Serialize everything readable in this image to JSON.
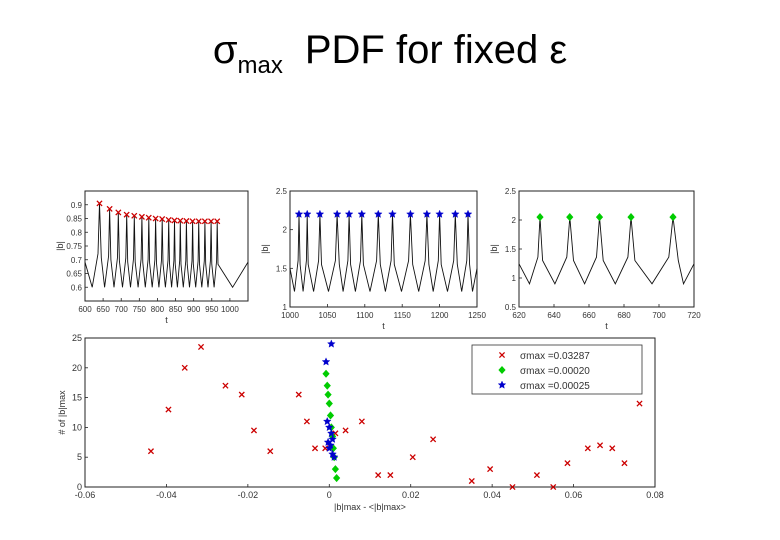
{
  "title": {
    "symbol": "σ",
    "subscript": "max",
    "text": "PDF for fixed ε"
  },
  "chart_data": [
    {
      "type": "line",
      "xlabel": "t",
      "ylabel": "|b|",
      "xlim": [
        600,
        1050
      ],
      "ylim": [
        0.55,
        0.95
      ],
      "xticks": [
        600,
        650,
        700,
        750,
        800,
        850,
        900,
        950,
        1000
      ],
      "xtick_labels": [
        "600",
        "650",
        "700",
        "750",
        "800",
        "850",
        "900",
        "950",
        "1000"
      ],
      "yticks": [
        0.6,
        0.65,
        0.7,
        0.75,
        0.8,
        0.85,
        0.9
      ],
      "ytick_labels": [
        "0.6",
        "0.65",
        "0.7",
        "0.75",
        "0.8",
        "0.85",
        "0.9"
      ],
      "marker": "x",
      "marker_color": "#cc0000",
      "peaks": [
        {
          "x": 640,
          "y": 0.905
        },
        {
          "x": 668,
          "y": 0.885
        },
        {
          "x": 692,
          "y": 0.872
        },
        {
          "x": 715,
          "y": 0.864
        },
        {
          "x": 736,
          "y": 0.86
        },
        {
          "x": 757,
          "y": 0.856
        },
        {
          "x": 776,
          "y": 0.853
        },
        {
          "x": 795,
          "y": 0.85
        },
        {
          "x": 813,
          "y": 0.848
        },
        {
          "x": 831,
          "y": 0.845
        },
        {
          "x": 847,
          "y": 0.843
        },
        {
          "x": 863,
          "y": 0.842
        },
        {
          "x": 880,
          "y": 0.841
        },
        {
          "x": 897,
          "y": 0.84
        },
        {
          "x": 914,
          "y": 0.84
        },
        {
          "x": 931,
          "y": 0.84
        },
        {
          "x": 948,
          "y": 0.84
        },
        {
          "x": 965,
          "y": 0.84
        }
      ],
      "trough_level": 0.6
    },
    {
      "type": "line",
      "xlabel": "t",
      "ylabel": "|b|",
      "xlim": [
        1000,
        1250
      ],
      "ylim": [
        1,
        2.5
      ],
      "xticks": [
        1000,
        1050,
        1100,
        1150,
        1200,
        1250
      ],
      "xtick_labels": [
        "1000",
        "1050",
        "1100",
        "1150",
        "1200",
        "1250"
      ],
      "yticks": [
        1,
        1.5,
        2,
        2.5
      ],
      "ytick_labels": [
        "1",
        "1.5",
        "2",
        "2.5"
      ],
      "marker": "*",
      "marker_color": "#0000cc",
      "peaks": [
        {
          "x": 1012,
          "y": 2.2
        },
        {
          "x": 1023,
          "y": 2.2
        },
        {
          "x": 1040,
          "y": 2.2
        },
        {
          "x": 1063,
          "y": 2.2
        },
        {
          "x": 1079,
          "y": 2.2
        },
        {
          "x": 1096,
          "y": 2.2
        },
        {
          "x": 1118,
          "y": 2.2
        },
        {
          "x": 1137,
          "y": 2.2
        },
        {
          "x": 1161,
          "y": 2.2
        },
        {
          "x": 1183,
          "y": 2.2
        },
        {
          "x": 1200,
          "y": 2.2
        },
        {
          "x": 1221,
          "y": 2.2
        },
        {
          "x": 1238,
          "y": 2.2
        }
      ],
      "trough_level": 1.2
    },
    {
      "type": "line",
      "xlabel": "t",
      "ylabel": "|b|",
      "xlim": [
        620,
        720
      ],
      "ylim": [
        0.5,
        2.5
      ],
      "xticks": [
        620,
        640,
        660,
        680,
        700,
        720
      ],
      "xtick_labels": [
        "620",
        "640",
        "660",
        "680",
        "700",
        "720"
      ],
      "yticks": [
        0.5,
        1,
        1.5,
        2,
        2.5
      ],
      "ytick_labels": [
        "0.5",
        "1",
        "1.5",
        "2",
        "2.5"
      ],
      "marker": "diamond",
      "marker_color": "#00cc00",
      "peaks": [
        {
          "x": 632,
          "y": 2.05
        },
        {
          "x": 649,
          "y": 2.05
        },
        {
          "x": 666,
          "y": 2.05
        },
        {
          "x": 684,
          "y": 2.05
        },
        {
          "x": 708,
          "y": 2.05
        }
      ],
      "trough_level": 0.9
    },
    {
      "type": "scatter",
      "xlabel": "|b|max - <|b|max>",
      "ylabel": "# of |b|max",
      "xlim": [
        -0.06,
        0.08
      ],
      "ylim": [
        0,
        25
      ],
      "xticks": [
        -0.06,
        -0.04,
        -0.02,
        0,
        0.02,
        0.04,
        0.06,
        0.08
      ],
      "xtick_labels": [
        "-0.06",
        "-0.04",
        "-0.02",
        "0",
        "0.02",
        "0.04",
        "0.06",
        "0.08"
      ],
      "yticks": [
        0,
        5,
        10,
        15,
        20,
        25
      ],
      "ytick_labels": [
        "0",
        "5",
        "10",
        "15",
        "20",
        "25"
      ],
      "legend_position": "top-right",
      "series": [
        {
          "name": "σmax =0.03287",
          "marker": "x",
          "color": "#cc0000",
          "points": [
            [
              -0.0438,
              6
            ],
            [
              -0.0395,
              13
            ],
            [
              -0.0355,
              20
            ],
            [
              -0.0315,
              23.5
            ],
            [
              -0.0255,
              17
            ],
            [
              -0.0215,
              15.5
            ],
            [
              -0.0185,
              9.5
            ],
            [
              -0.0145,
              6
            ],
            [
              -0.0075,
              15.5
            ],
            [
              -0.0055,
              11
            ],
            [
              -0.0035,
              6.5
            ],
            [
              -0.001,
              6.5
            ],
            [
              0.0015,
              9
            ],
            [
              0.004,
              9.5
            ],
            [
              0.008,
              11
            ],
            [
              0.012,
              2
            ],
            [
              0.015,
              2
            ],
            [
              0.0205,
              5
            ],
            [
              0.0255,
              8
            ],
            [
              0.035,
              1
            ],
            [
              0.0395,
              3
            ],
            [
              0.045,
              0
            ],
            [
              0.051,
              2
            ],
            [
              0.055,
              0
            ],
            [
              0.0585,
              4
            ],
            [
              0.0635,
              6.5
            ],
            [
              0.0665,
              7
            ],
            [
              0.0695,
              6.5
            ],
            [
              0.0725,
              4
            ],
            [
              0.0762,
              14
            ]
          ]
        },
        {
          "name": "σmax =0.00020",
          "marker": "diamond",
          "color": "#00cc00",
          "points": [
            [
              -0.0008,
              19
            ],
            [
              -0.0005,
              17
            ],
            [
              -0.0003,
              15.5
            ],
            [
              0,
              14
            ],
            [
              0.0003,
              12
            ],
            [
              0.0005,
              10
            ],
            [
              0.0008,
              8.5
            ],
            [
              0.001,
              6.5
            ],
            [
              0.0012,
              5
            ],
            [
              0.0015,
              3
            ],
            [
              0.0018,
              1.5
            ]
          ]
        },
        {
          "name": "σmax =0.00025",
          "marker": "*",
          "color": "#0000cc",
          "points": [
            [
              -0.0008,
              21
            ],
            [
              0.0005,
              24
            ],
            [
              -0.0005,
              11
            ],
            [
              0,
              10
            ],
            [
              0.0005,
              9
            ],
            [
              0.0008,
              8
            ],
            [
              -0.0003,
              7.5
            ],
            [
              0.0003,
              7
            ],
            [
              0,
              6.5
            ],
            [
              0.0008,
              5.5
            ],
            [
              0.0012,
              5
            ]
          ]
        }
      ]
    }
  ]
}
